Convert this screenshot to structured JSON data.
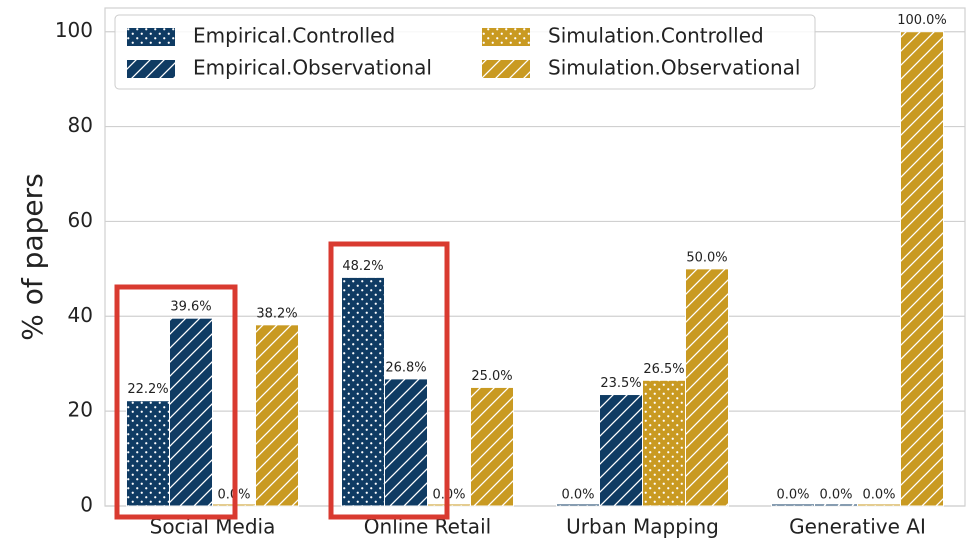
{
  "chart_data": {
    "type": "bar",
    "ylabel": "% of papers",
    "categories": [
      "Social Media",
      "Online Retail",
      "Urban Mapping",
      "Generative AI"
    ],
    "series": [
      {
        "name": "Empirical.Controlled",
        "color": "#0f3b63",
        "hatch": "dots",
        "values": [
          22.2,
          48.2,
          0.0,
          0.0
        ],
        "value_labels": [
          "22.2%",
          "48.2%",
          "0.0%",
          "0.0%"
        ]
      },
      {
        "name": "Empirical.Observational",
        "color": "#0f3b63",
        "hatch": "slash",
        "values": [
          39.6,
          26.8,
          23.5,
          0.0
        ],
        "value_labels": [
          "39.6%",
          "26.8%",
          "23.5%",
          "0.0%"
        ]
      },
      {
        "name": "Simulation.Controlled",
        "color": "#c99a22",
        "hatch": "dots",
        "values": [
          0.0,
          0.0,
          26.5,
          0.0
        ],
        "value_labels": [
          "0.0%",
          "0.0%",
          "26.5%",
          "0.0%"
        ]
      },
      {
        "name": "Simulation.Observational",
        "color": "#c99a22",
        "hatch": "slash",
        "values": [
          38.2,
          25.0,
          50.0,
          100.0
        ],
        "value_labels": [
          "38.2%",
          "25.0%",
          "50.0%",
          "100.0%"
        ]
      }
    ],
    "ylim": [
      0,
      105
    ],
    "yticks": [
      0,
      20,
      40,
      60,
      80,
      100
    ],
    "grid": true,
    "legend": "upper left"
  }
}
